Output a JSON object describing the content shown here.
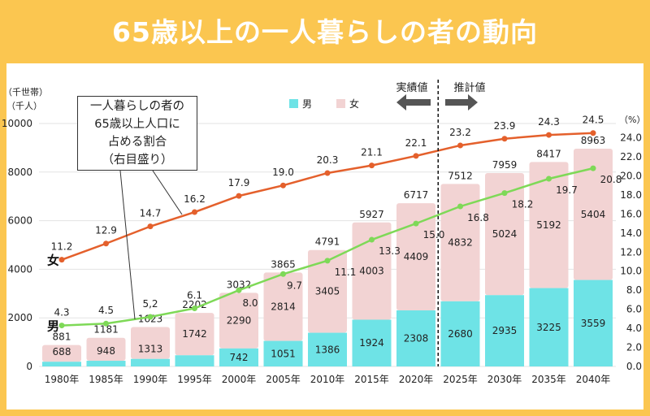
{
  "title": "65歳以上の一人暮らしの者の動向",
  "chart_data": {
    "type": "bar",
    "stacked": true,
    "categories": [
      "1980年",
      "1985年",
      "1990年",
      "1995年",
      "2000年",
      "2005年",
      "2010年",
      "2015年",
      "2020年",
      "2025年",
      "2030年",
      "2035年",
      "2040年"
    ],
    "series": [
      {
        "name": "男",
        "color": "#6EE3E6",
        "values": [
          193,
          233,
          310,
          460,
          742,
          1051,
          1386,
          1924,
          2308,
          2680,
          2935,
          3225,
          3559
        ]
      },
      {
        "name": "女",
        "color": "#F2D3D3",
        "values": [
          688,
          948,
          1313,
          1742,
          2290,
          2814,
          3405,
          4003,
          4409,
          4832,
          5024,
          5192,
          5404
        ]
      }
    ],
    "totals": [
      881,
      1181,
      1623,
      2202,
      3032,
      3865,
      4791,
      5927,
      6717,
      7512,
      7959,
      8417,
      8963
    ],
    "lines": [
      {
        "name": "女",
        "axis": "right",
        "color": "#E4602C",
        "values": [
          11.2,
          12.9,
          14.7,
          16.2,
          17.9,
          19.0,
          20.3,
          21.1,
          22.1,
          23.2,
          23.9,
          24.3,
          24.5
        ],
        "labels": [
          "11.2",
          "12.9",
          "14.7",
          "16.2",
          "17.9",
          "19.0",
          "20.3",
          "21.1",
          "22.1",
          "23.2",
          "23.9",
          "24.3",
          "24.5"
        ]
      },
      {
        "name": "男",
        "axis": "right",
        "color": "#7ED957",
        "values": [
          4.3,
          4.5,
          5.2,
          6.1,
          8.0,
          9.7,
          11.1,
          13.3,
          15.0,
          16.8,
          18.2,
          19.7,
          20.8
        ],
        "labels": [
          "4.3",
          "4.5",
          "5,2",
          "6.1",
          "8.0",
          "9.7",
          "11.1",
          "13.3",
          "15.0",
          "16.8",
          "18.2",
          "19.7",
          "20.8"
        ]
      }
    ],
    "ylabel_left": [
      "（千世帯）",
      "（千人）"
    ],
    "ylabel_right": "（%）",
    "ylim_left": [
      0,
      10000
    ],
    "yticks_left": [
      "0",
      "2000",
      "4000",
      "6000",
      "8000",
      "10000"
    ],
    "ylim_right": [
      0,
      25.5
    ],
    "yticks_right": [
      "0.0",
      "2.0",
      "4.0",
      "6.0",
      "8.0",
      "10.0",
      "12.0",
      "14.0",
      "16.0",
      "18.0",
      "20.0",
      "22.0",
      "24.0"
    ],
    "grid": true,
    "legend": {
      "position": "top",
      "entries": [
        "男",
        "女"
      ]
    },
    "annotation": [
      "一人暮らしの者の",
      "65歳以上人口に",
      "占める割合",
      "（右目盛り）"
    ],
    "divider": {
      "after": "2020年",
      "left_label": "実績値",
      "right_label": "推計値"
    }
  }
}
